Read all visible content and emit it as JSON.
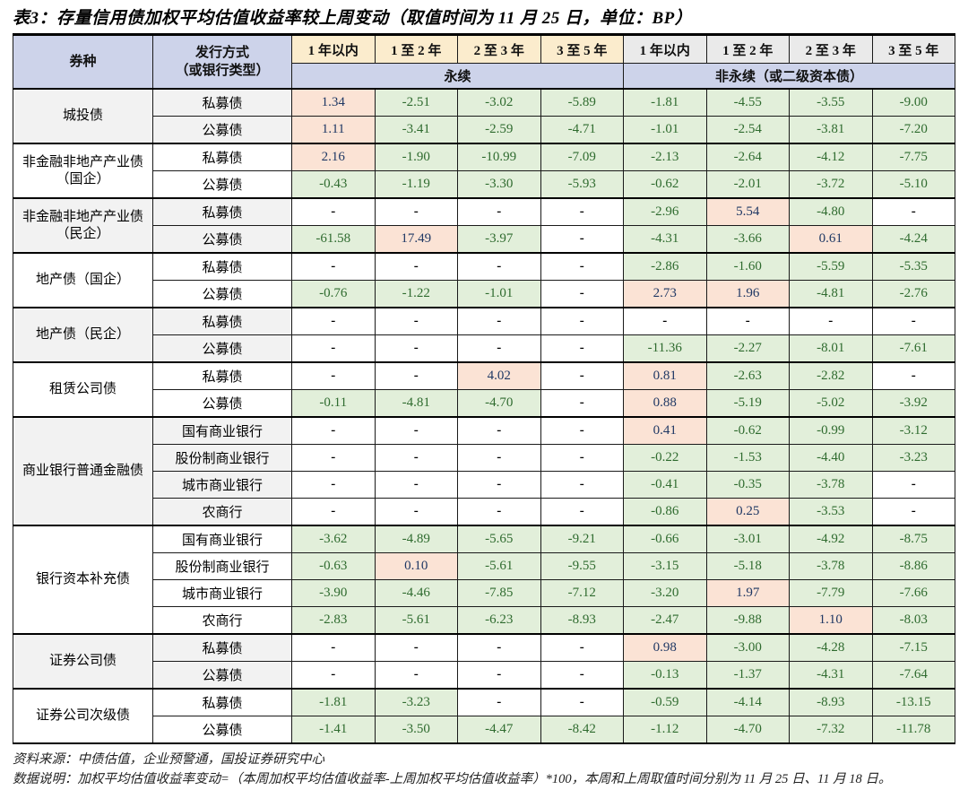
{
  "title": "表3：存量信用债加权平均估值收益率较上周变动（取值时间为 11 月 25 日，单位：BP）",
  "table": {
    "corner_headers": {
      "bond_type": "券种",
      "issue_method": "发行方式\n（或银行类型）"
    },
    "year_headers": [
      "1 年以内",
      "1 至 2 年",
      "2 至 3 年",
      "3 至 5 年"
    ],
    "band_headers": {
      "perpetual": "永续",
      "non_perpetual": "非永续（或二级资本债）"
    },
    "groups": [
      {
        "name": "城投债",
        "shaded": true,
        "rows": [
          {
            "label": "私募债",
            "perpetual": [
              "1.34",
              "-2.51",
              "-3.02",
              "-5.89"
            ],
            "non_perpetual": [
              "-1.81",
              "-4.55",
              "-3.55",
              "-9.00"
            ]
          },
          {
            "label": "公募债",
            "perpetual": [
              "1.11",
              "-3.41",
              "-2.59",
              "-4.71"
            ],
            "non_perpetual": [
              "-1.01",
              "-2.54",
              "-3.81",
              "-7.20"
            ]
          }
        ]
      },
      {
        "name": "非金融非地产产业债（国企）",
        "shaded": false,
        "rows": [
          {
            "label": "私募债",
            "perpetual": [
              "2.16",
              "-1.90",
              "-10.99",
              "-7.09"
            ],
            "non_perpetual": [
              "-2.13",
              "-2.64",
              "-4.12",
              "-7.75"
            ]
          },
          {
            "label": "公募债",
            "perpetual": [
              "-0.43",
              "-1.19",
              "-3.30",
              "-5.93"
            ],
            "non_perpetual": [
              "-0.62",
              "-2.01",
              "-3.72",
              "-5.10"
            ]
          }
        ]
      },
      {
        "name": "非金融非地产产业债（民企）",
        "shaded": true,
        "rows": [
          {
            "label": "私募债",
            "perpetual": [
              "-",
              "-",
              "-",
              "-"
            ],
            "non_perpetual": [
              "-2.96",
              "5.54",
              "-4.80",
              "-"
            ]
          },
          {
            "label": "公募债",
            "perpetual": [
              "-61.58",
              "17.49",
              "-3.97",
              "-"
            ],
            "non_perpetual": [
              "-4.31",
              "-3.66",
              "0.61",
              "-4.24"
            ]
          }
        ]
      },
      {
        "name": "地产债（国企）",
        "shaded": false,
        "rows": [
          {
            "label": "私募债",
            "perpetual": [
              "-",
              "-",
              "-",
              "-"
            ],
            "non_perpetual": [
              "-2.86",
              "-1.60",
              "-5.59",
              "-5.35"
            ]
          },
          {
            "label": "公募债",
            "perpetual": [
              "-0.76",
              "-1.22",
              "-1.01",
              "-"
            ],
            "non_perpetual": [
              "2.73",
              "1.96",
              "-4.81",
              "-2.76"
            ]
          }
        ]
      },
      {
        "name": "地产债（民企）",
        "shaded": true,
        "rows": [
          {
            "label": "私募债",
            "perpetual": [
              "-",
              "-",
              "-",
              "-"
            ],
            "non_perpetual": [
              "-",
              "-",
              "-",
              "-"
            ]
          },
          {
            "label": "公募债",
            "perpetual": [
              "-",
              "-",
              "-",
              "-"
            ],
            "non_perpetual": [
              "-11.36",
              "-2.27",
              "-8.01",
              "-7.61"
            ]
          }
        ]
      },
      {
        "name": "租赁公司债",
        "shaded": false,
        "rows": [
          {
            "label": "私募债",
            "perpetual": [
              "-",
              "-",
              "4.02",
              "-"
            ],
            "non_perpetual": [
              "0.81",
              "-2.63",
              "-2.82",
              "-"
            ]
          },
          {
            "label": "公募债",
            "perpetual": [
              "-0.11",
              "-4.81",
              "-4.70",
              "-"
            ],
            "non_perpetual": [
              "0.88",
              "-5.19",
              "-5.02",
              "-3.92"
            ]
          }
        ]
      },
      {
        "name": "商业银行普通金融债",
        "shaded": true,
        "rows": [
          {
            "label": "国有商业银行",
            "perpetual": [
              "-",
              "-",
              "-",
              "-"
            ],
            "non_perpetual": [
              "0.41",
              "-0.62",
              "-0.99",
              "-3.12"
            ]
          },
          {
            "label": "股份制商业银行",
            "perpetual": [
              "-",
              "-",
              "-",
              "-"
            ],
            "non_perpetual": [
              "-0.22",
              "-1.53",
              "-4.40",
              "-3.23"
            ]
          },
          {
            "label": "城市商业银行",
            "perpetual": [
              "-",
              "-",
              "-",
              "-"
            ],
            "non_perpetual": [
              "-0.41",
              "-0.35",
              "-3.78",
              "-"
            ]
          },
          {
            "label": "农商行",
            "perpetual": [
              "-",
              "-",
              "-",
              "-"
            ],
            "non_perpetual": [
              "-0.86",
              "0.25",
              "-3.53",
              "-"
            ]
          }
        ]
      },
      {
        "name": "银行资本补充债",
        "shaded": false,
        "rows": [
          {
            "label": "国有商业银行",
            "perpetual": [
              "-3.62",
              "-4.89",
              "-5.65",
              "-9.21"
            ],
            "non_perpetual": [
              "-0.66",
              "-3.01",
              "-4.92",
              "-8.75"
            ]
          },
          {
            "label": "股份制商业银行",
            "perpetual": [
              "-0.63",
              "0.10",
              "-5.61",
              "-9.55"
            ],
            "non_perpetual": [
              "-3.15",
              "-5.18",
              "-3.78",
              "-8.86"
            ]
          },
          {
            "label": "城市商业银行",
            "perpetual": [
              "-3.90",
              "-4.46",
              "-7.85",
              "-7.12"
            ],
            "non_perpetual": [
              "-3.20",
              "1.97",
              "-7.79",
              "-7.66"
            ]
          },
          {
            "label": "农商行",
            "perpetual": [
              "-2.83",
              "-5.61",
              "-6.23",
              "-8.93"
            ],
            "non_perpetual": [
              "-2.47",
              "-9.88",
              "1.10",
              "-8.03"
            ]
          }
        ]
      },
      {
        "name": "证券公司债",
        "shaded": true,
        "rows": [
          {
            "label": "私募债",
            "perpetual": [
              "-",
              "-",
              "-",
              "-"
            ],
            "non_perpetual": [
              "0.98",
              "-3.00",
              "-4.28",
              "-7.15"
            ]
          },
          {
            "label": "公募债",
            "perpetual": [
              "-",
              "-",
              "-",
              "-"
            ],
            "non_perpetual": [
              "-0.13",
              "-1.37",
              "-4.31",
              "-7.64"
            ]
          }
        ]
      },
      {
        "name": "证券公司次级债",
        "shaded": false,
        "rows": [
          {
            "label": "私募债",
            "perpetual": [
              "-1.81",
              "-3.23",
              "-",
              "-"
            ],
            "non_perpetual": [
              "-0.59",
              "-4.14",
              "-8.93",
              "-13.15"
            ]
          },
          {
            "label": "公募债",
            "perpetual": [
              "-1.41",
              "-3.50",
              "-4.47",
              "-8.42"
            ],
            "non_perpetual": [
              "-1.12",
              "-4.70",
              "-7.32",
              "-11.78"
            ]
          }
        ]
      }
    ]
  },
  "footnotes": {
    "source": "资料来源：中债估值，企业预警通，国投证券研究中心",
    "note": "数据说明：加权平均估值收益率变动=（本周加权平均估值收益率-上周加权平均估值收益率）*100，本周和上周取值时间分别为 11 月 25 日、11 月 18 日。"
  },
  "colors": {
    "header_blue": "#cdd3ea",
    "header_cream": "#fbeccd",
    "header_gray": "#eaeaea",
    "positive_bg": "#fbe3d5",
    "positive_text": "#1f3864",
    "negative_bg": "#e2efda",
    "negative_text": "#2f6b2f",
    "shaded_row": "#f2f2f2"
  }
}
